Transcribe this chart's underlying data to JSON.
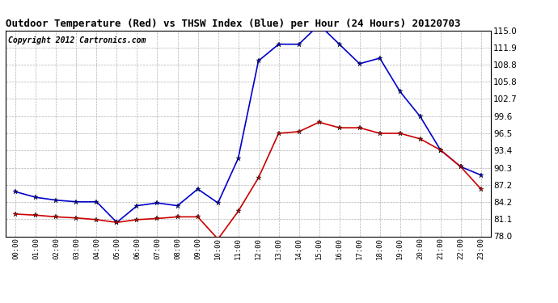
{
  "title": "Outdoor Temperature (Red) vs THSW Index (Blue) per Hour (24 Hours) 20120703",
  "copyright": "Copyright 2012 Cartronics.com",
  "hours": [
    "00:00",
    "01:00",
    "02:00",
    "03:00",
    "04:00",
    "05:00",
    "06:00",
    "07:00",
    "08:00",
    "09:00",
    "10:00",
    "11:00",
    "12:00",
    "13:00",
    "14:00",
    "15:00",
    "16:00",
    "17:00",
    "18:00",
    "19:00",
    "20:00",
    "21:00",
    "22:00",
    "23:00"
  ],
  "temp_red": [
    82.0,
    81.8,
    81.5,
    81.3,
    81.0,
    80.5,
    81.0,
    81.2,
    81.5,
    81.5,
    77.5,
    82.5,
    88.5,
    96.5,
    96.8,
    98.5,
    97.5,
    97.5,
    96.5,
    96.5,
    95.5,
    93.5,
    90.5,
    86.5
  ],
  "thsw_blue": [
    86.0,
    85.0,
    84.5,
    84.2,
    84.2,
    80.5,
    83.5,
    84.0,
    83.5,
    86.5,
    84.0,
    92.0,
    109.5,
    112.5,
    112.5,
    116.0,
    112.5,
    109.0,
    110.0,
    104.0,
    99.5,
    93.5,
    90.5,
    89.0
  ],
  "ylim_min": 78.0,
  "ylim_max": 115.0,
  "yticks": [
    78.0,
    81.1,
    84.2,
    87.2,
    90.3,
    93.4,
    96.5,
    99.6,
    102.7,
    105.8,
    108.8,
    111.9,
    115.0
  ],
  "red_color": "#cc0000",
  "blue_color": "#0000cc",
  "bg_color": "#ffffff",
  "grid_color": "#aaaaaa",
  "title_fontsize": 9,
  "copyright_fontsize": 7
}
